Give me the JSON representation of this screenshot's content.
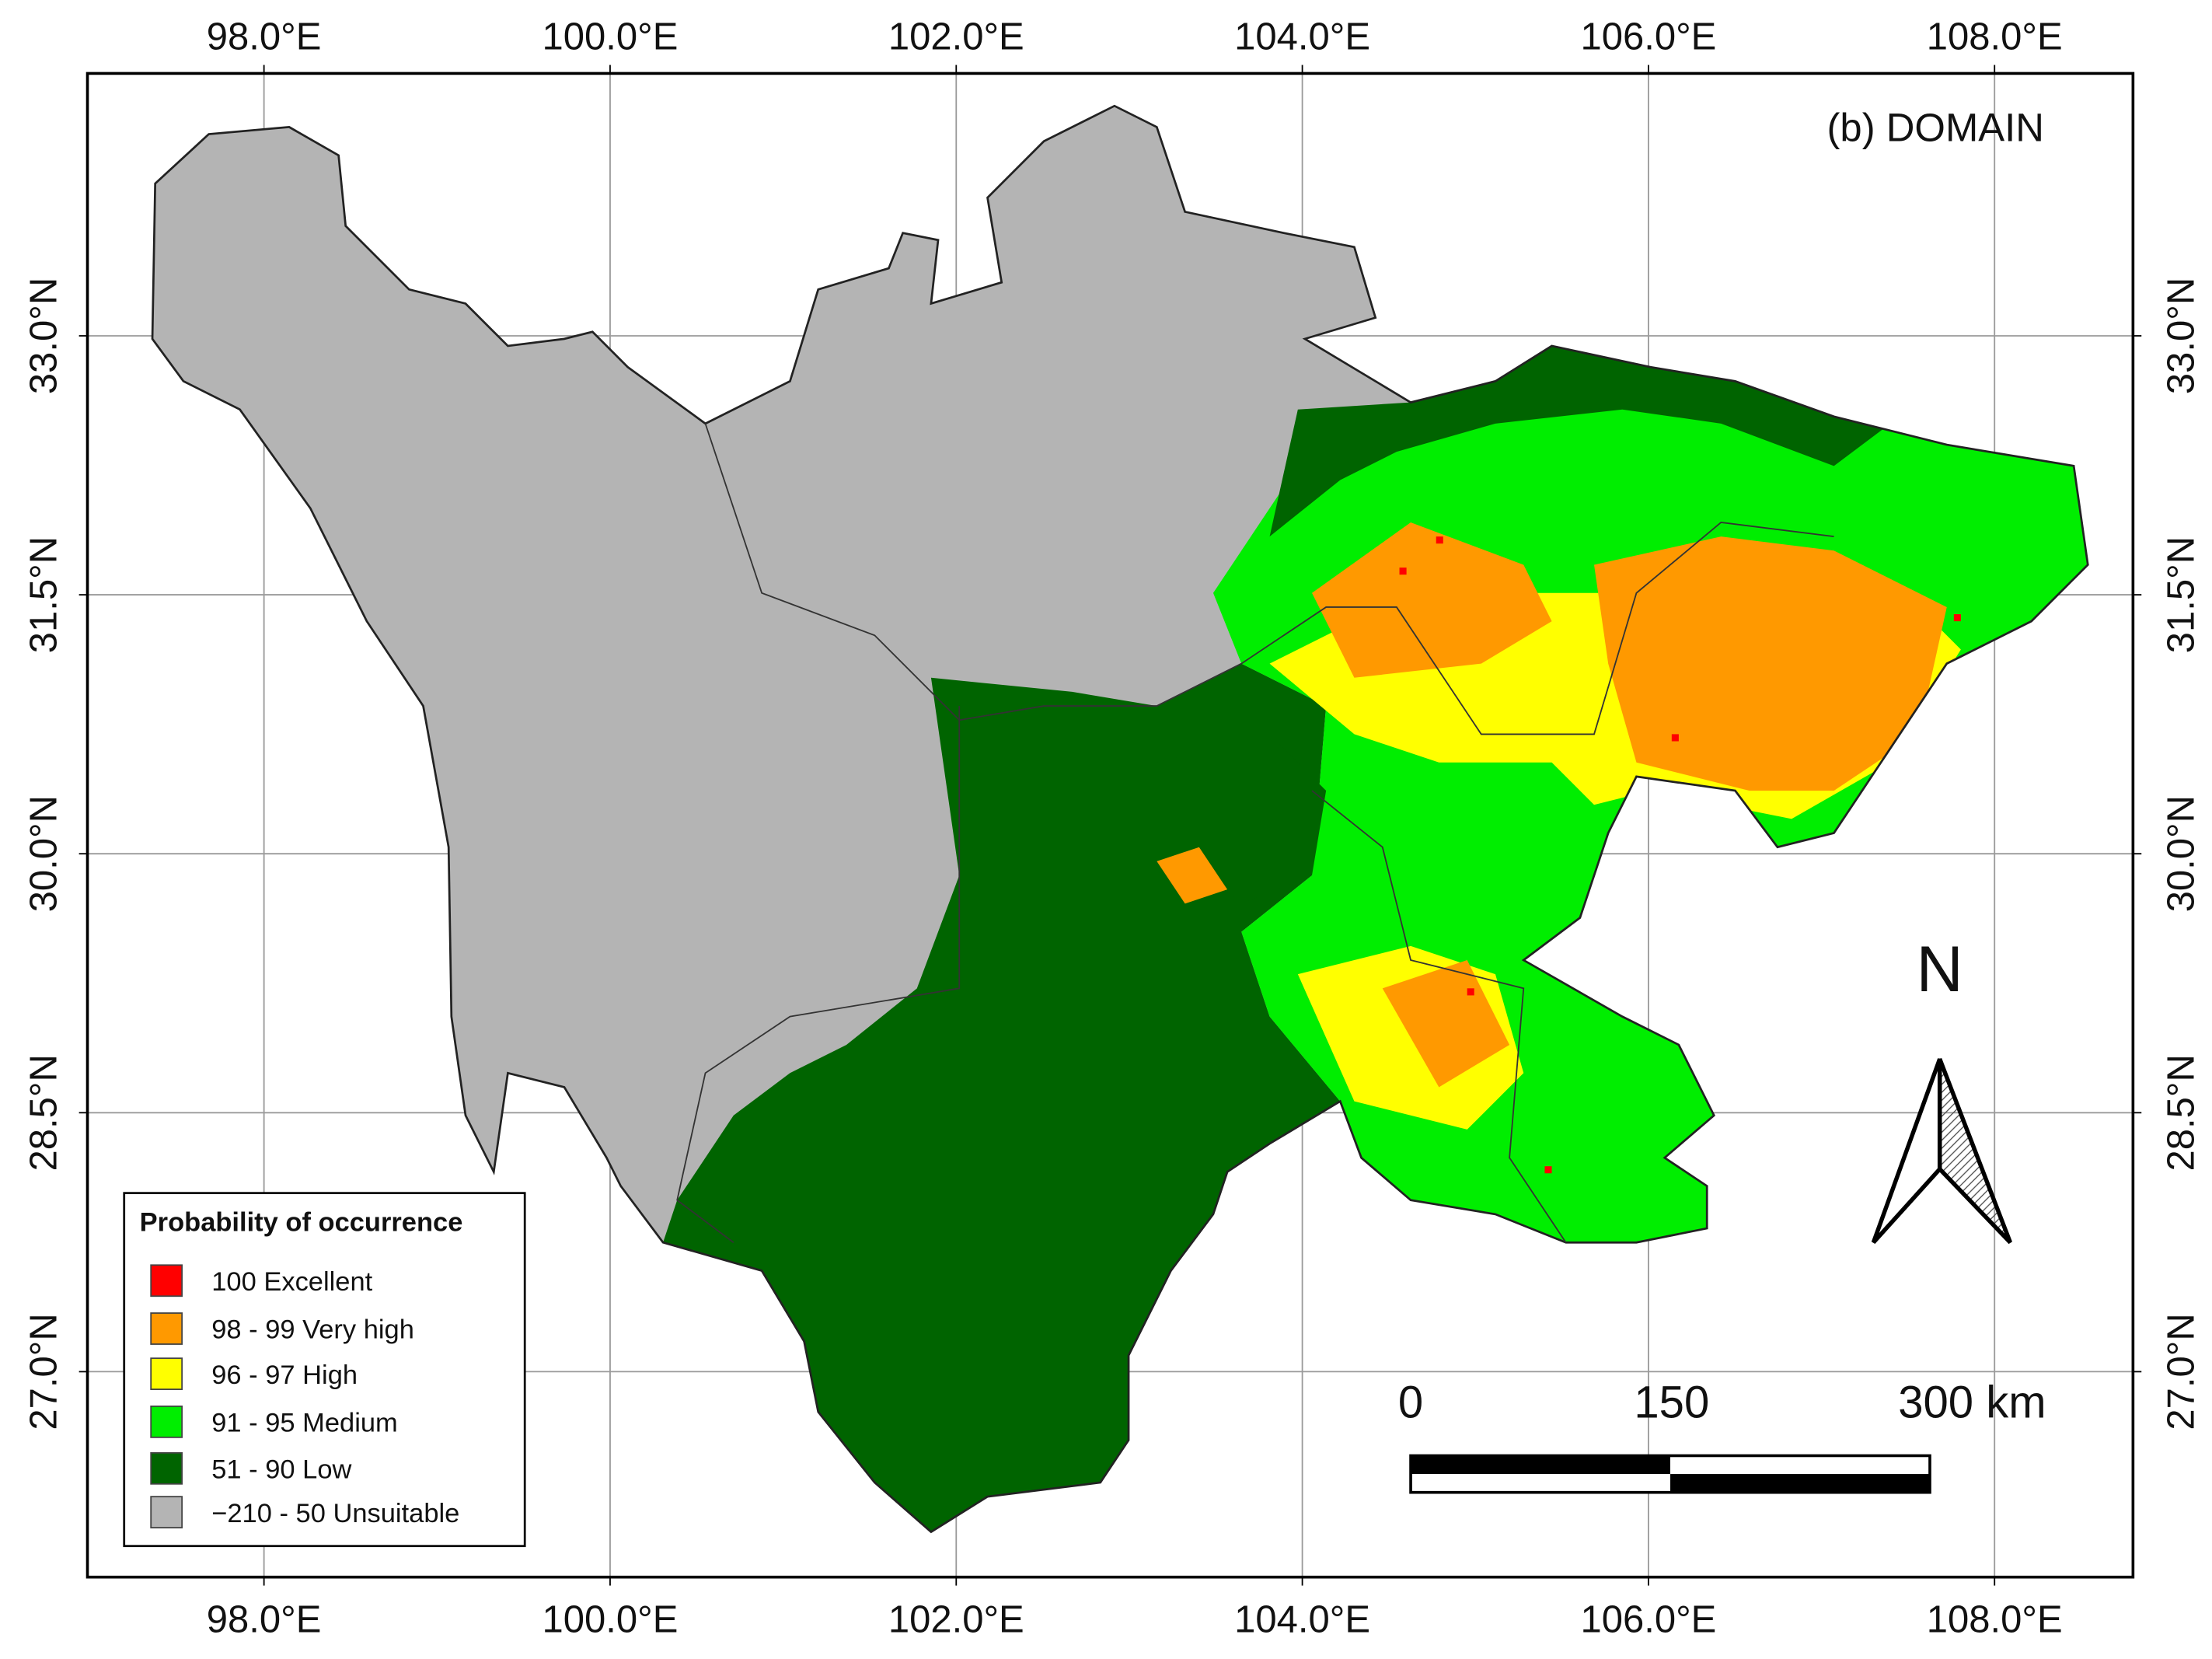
{
  "map": {
    "title": "(b) DOMAIN",
    "xlim": [
      96.98,
      108.8
    ],
    "ylim": [
      25.81,
      34.52
    ],
    "lon_ticks": [
      {
        "value": 98,
        "label": "98.0°E"
      },
      {
        "value": 100,
        "label": "100.0°E"
      },
      {
        "value": 102,
        "label": "102.0°E"
      },
      {
        "value": 104,
        "label": "104.0°E"
      },
      {
        "value": 106,
        "label": "106.0°E"
      },
      {
        "value": 108,
        "label": "108.0°E"
      }
    ],
    "lat_ticks": [
      {
        "value": 27,
        "label": "27.0°N"
      },
      {
        "value": 28.5,
        "label": "28.5°N"
      },
      {
        "value": 30,
        "label": "30.0°N"
      },
      {
        "value": 31.5,
        "label": "31.5°N"
      },
      {
        "value": 33,
        "label": "33.0°N"
      }
    ],
    "grid": true,
    "legend": {
      "title": "Probability of occurrence",
      "items": [
        {
          "label": "100 Excellent",
          "color": "#ff0000"
        },
        {
          "label": "98 - 99 Very high",
          "color": "#ff9900"
        },
        {
          "label": "96 - 97 High",
          "color": "#ffff00"
        },
        {
          "label": "91 - 95 Medium",
          "color": "#00ee00"
        },
        {
          "label": "51 - 90 Low",
          "color": "#006400"
        },
        {
          "label": "−210 - 50 Unsuitable",
          "color": "#b4b4b4"
        }
      ]
    },
    "north_arrow": "N",
    "scale_bar": [
      "0",
      "150",
      "300 km"
    ]
  }
}
